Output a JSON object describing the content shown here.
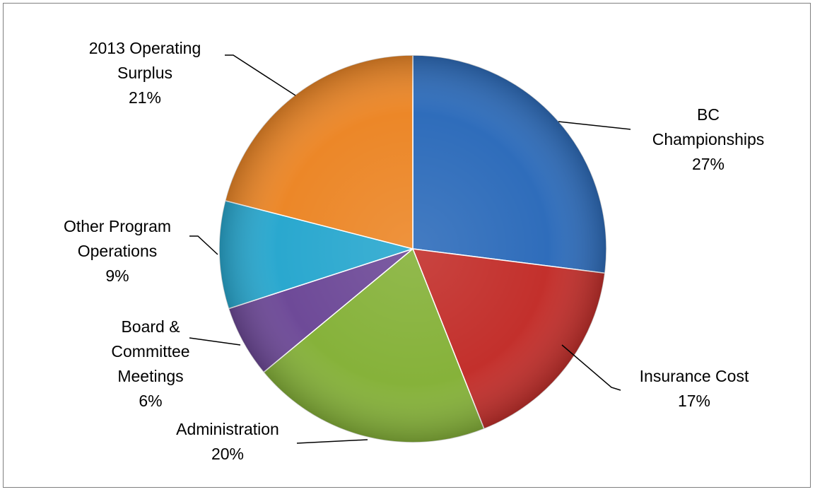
{
  "chart_data": {
    "type": "pie",
    "title": "",
    "start_angle_deg": 0,
    "direction": "clockwise",
    "slices": [
      {
        "label_lines": [
          "BC",
          "Championships"
        ],
        "value": 27,
        "value_text": "27%",
        "color": "#2f6dbb"
      },
      {
        "label_lines": [
          "Insurance Cost"
        ],
        "value": 17,
        "value_text": "17%",
        "color": "#c3302c"
      },
      {
        "label_lines": [
          "Administration"
        ],
        "value": 20,
        "value_text": "20%",
        "color": "#86b23a"
      },
      {
        "label_lines": [
          "Board &",
          "Committee",
          "Meetings"
        ],
        "value": 6,
        "value_text": "6%",
        "color": "#6e4a98"
      },
      {
        "label_lines": [
          "Other Program",
          "Operations"
        ],
        "value": 9,
        "value_text": "9%",
        "color": "#2aa8cf"
      },
      {
        "label_lines": [
          "2013 Operating",
          "Surplus"
        ],
        "value": 21,
        "value_text": "21%",
        "color": "#ec8728"
      }
    ]
  }
}
